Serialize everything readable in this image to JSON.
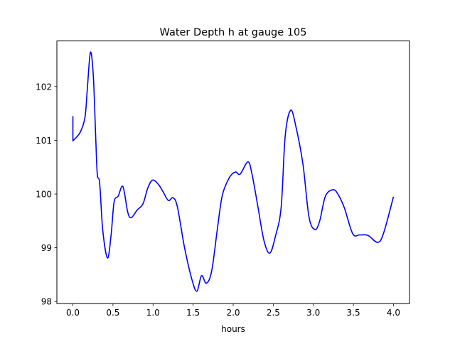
{
  "chart_data": {
    "type": "line",
    "title": "Water Depth h at gauge 105",
    "xlabel": "hours",
    "ylabel": "",
    "xlim": [
      -0.2,
      4.2
    ],
    "ylim": [
      97.96,
      102.85
    ],
    "xticks": [
      0.0,
      0.5,
      1.0,
      1.5,
      2.0,
      2.5,
      3.0,
      3.5,
      4.0
    ],
    "xtick_labels": [
      "0.0",
      "0.5",
      "1.0",
      "1.5",
      "2.0",
      "2.5",
      "3.0",
      "3.5",
      "4.0"
    ],
    "yticks": [
      98,
      99,
      100,
      101,
      102
    ],
    "ytick_labels": [
      "98",
      "99",
      "100",
      "101",
      "102"
    ],
    "grid": false,
    "series": [
      {
        "name": "h",
        "color": "#0000ff",
        "x": [
          0,
          0,
          0.091,
          0.151,
          0.18,
          0.219,
          0.255,
          0.284,
          0.304,
          0.334,
          0.373,
          0.432,
          0.476,
          0.514,
          0.565,
          0.624,
          0.683,
          0.727,
          0.801,
          0.875,
          0.934,
          0.994,
          1.067,
          1.126,
          1.191,
          1.25,
          1.304,
          1.392,
          1.481,
          1.546,
          1.605,
          1.665,
          1.732,
          1.807,
          1.865,
          1.954,
          2.028,
          2.087,
          2.184,
          2.235,
          2.309,
          2.383,
          2.457,
          2.53,
          2.599,
          2.649,
          2.717,
          2.782,
          2.871,
          2.945,
          3.018,
          3.078,
          3.151,
          3.249,
          3.314,
          3.388,
          3.492,
          3.58,
          3.683,
          3.802,
          3.876,
          4.0
        ],
        "y": [
          101.45,
          100.99,
          101.15,
          101.43,
          101.96,
          102.64,
          102.19,
          101.08,
          100.37,
          100.2,
          99.32,
          98.81,
          99.23,
          99.85,
          99.96,
          100.14,
          99.67,
          99.56,
          99.7,
          99.82,
          100.11,
          100.26,
          100.18,
          100.04,
          99.88,
          99.93,
          99.76,
          99.01,
          98.43,
          98.19,
          98.48,
          98.34,
          98.57,
          99.4,
          99.98,
          100.31,
          100.41,
          100.37,
          100.6,
          100.37,
          99.76,
          99.14,
          98.9,
          99.23,
          99.76,
          101.08,
          101.56,
          101.26,
          100.55,
          99.58,
          99.34,
          99.49,
          99.96,
          100.08,
          99.98,
          99.74,
          99.26,
          99.24,
          99.23,
          99.1,
          99.27,
          99.95
        ]
      }
    ]
  }
}
